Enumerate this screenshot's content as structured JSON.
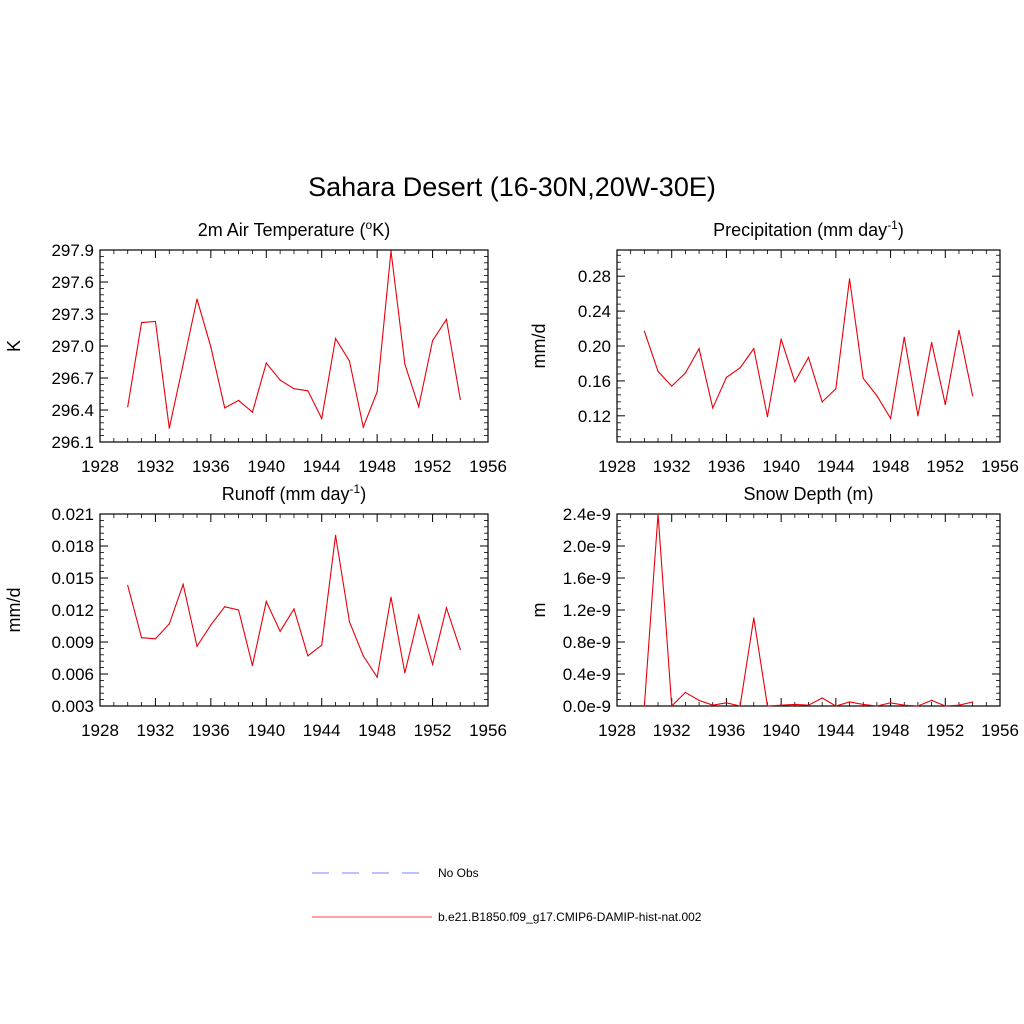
{
  "figure": {
    "title": "Sahara Desert (16-30N,20W-30E)"
  },
  "legend": [
    {
      "label": "No Obs",
      "color": "#9999ff",
      "dash": true
    },
    {
      "label": "b.e21.B1850.f09_g17.CMIP6-DAMIP-hist-nat.002",
      "color": "#ff6666",
      "dash": false
    }
  ],
  "chart_data": [
    {
      "type": "line",
      "title_main": "2m Air Temperature (",
      "title_sup": "o",
      "title_end": "K)",
      "ylabel": "K",
      "xlim": [
        1928,
        1956
      ],
      "ylim": [
        296.1,
        297.9
      ],
      "xticks": [
        1928,
        1932,
        1936,
        1940,
        1944,
        1948,
        1952,
        1956
      ],
      "yticks": [
        296.1,
        296.4,
        296.7,
        297.0,
        297.3,
        297.6,
        297.9
      ],
      "ytick_labels": [
        "296.1",
        "296.4",
        "296.7",
        "297.0",
        "297.3",
        "297.6",
        "297.9"
      ],
      "series": [
        {
          "color": "#e8000b",
          "x": [
            1930,
            1931,
            1932,
            1933,
            1934,
            1935,
            1936,
            1937,
            1938,
            1939,
            1940,
            1941,
            1942,
            1943,
            1944,
            1945,
            1946,
            1947,
            1948,
            1949,
            1950,
            1951,
            1952,
            1953,
            1954
          ],
          "y": [
            296.43,
            297.22,
            297.23,
            296.23,
            296.83,
            297.44,
            296.99,
            296.42,
            296.49,
            296.38,
            296.84,
            296.68,
            296.6,
            296.58,
            296.32,
            297.07,
            296.86,
            296.24,
            296.57,
            297.89,
            296.83,
            296.43,
            297.05,
            297.25,
            296.5
          ]
        }
      ]
    },
    {
      "type": "line",
      "title_main": "Precipitation (mm day",
      "title_sup": "-1",
      "title_end": ")",
      "ylabel": "mm/d",
      "xlim": [
        1928,
        1956
      ],
      "ylim": [
        0.09,
        0.31
      ],
      "xticks": [
        1928,
        1932,
        1936,
        1940,
        1944,
        1948,
        1952,
        1956
      ],
      "yticks": [
        0.12,
        0.16,
        0.2,
        0.24,
        0.28
      ],
      "ytick_labels": [
        "0.12",
        "0.16",
        "0.20",
        "0.24",
        "0.28"
      ],
      "series": [
        {
          "color": "#e8000b",
          "x": [
            1930,
            1931,
            1932,
            1933,
            1934,
            1935,
            1936,
            1937,
            1938,
            1939,
            1940,
            1941,
            1942,
            1943,
            1944,
            1945,
            1946,
            1947,
            1948,
            1949,
            1950,
            1951,
            1952,
            1953,
            1954
          ],
          "y": [
            0.217,
            0.171,
            0.154,
            0.169,
            0.197,
            0.129,
            0.164,
            0.175,
            0.197,
            0.119,
            0.208,
            0.159,
            0.187,
            0.136,
            0.151,
            0.277,
            0.163,
            0.143,
            0.117,
            0.21,
            0.12,
            0.204,
            0.133,
            0.218,
            0.143
          ]
        }
      ]
    },
    {
      "type": "line",
      "title_main": "Runoff (mm day",
      "title_sup": "-1",
      "title_end": ")",
      "ylabel": "mm/d",
      "xlim": [
        1928,
        1956
      ],
      "ylim": [
        0.003,
        0.021
      ],
      "xticks": [
        1928,
        1932,
        1936,
        1940,
        1944,
        1948,
        1952,
        1956
      ],
      "yticks": [
        0.003,
        0.006,
        0.009,
        0.012,
        0.015,
        0.018,
        0.021
      ],
      "ytick_labels": [
        "0.003",
        "0.006",
        "0.009",
        "0.012",
        "0.015",
        "0.018",
        "0.021"
      ],
      "series": [
        {
          "color": "#e8000b",
          "x": [
            1930,
            1931,
            1932,
            1933,
            1934,
            1935,
            1936,
            1937,
            1938,
            1939,
            1940,
            1941,
            1942,
            1943,
            1944,
            1945,
            1946,
            1947,
            1948,
            1949,
            1950,
            1951,
            1952,
            1953,
            1954
          ],
          "y": [
            0.0143,
            0.0094,
            0.0093,
            0.0107,
            0.0144,
            0.0086,
            0.0106,
            0.0123,
            0.012,
            0.0068,
            0.0128,
            0.01,
            0.0121,
            0.0077,
            0.0087,
            0.019,
            0.0109,
            0.0077,
            0.0057,
            0.0132,
            0.0061,
            0.0115,
            0.0069,
            0.0122,
            0.0083
          ]
        }
      ]
    },
    {
      "type": "line",
      "title_main": "Snow Depth (m)",
      "title_sup": "",
      "title_end": "",
      "ylabel": "m",
      "xlim": [
        1928,
        1956
      ],
      "ylim": [
        0,
        2.4e-09
      ],
      "xticks": [
        1928,
        1932,
        1936,
        1940,
        1944,
        1948,
        1952,
        1956
      ],
      "yticks": [
        0,
        4e-10,
        8e-10,
        1.2e-09,
        1.6e-09,
        2e-09,
        2.4e-09
      ],
      "ytick_labels": [
        "0.0e-9",
        "0.4e-9",
        "0.8e-9",
        "1.2e-9",
        "1.6e-9",
        "2.0e-9",
        "2.4e-9"
      ],
      "series": [
        {
          "color": "#e8000b",
          "x": [
            1930,
            1931,
            1932,
            1933,
            1934,
            1935,
            1936,
            1937,
            1938,
            1939,
            1940,
            1941,
            1942,
            1943,
            1944,
            1945,
            1946,
            1947,
            1948,
            1949,
            1950,
            1951,
            1952,
            1953,
            1954
          ],
          "y": [
            0,
            2.4e-09,
            0,
            1.7e-10,
            7e-11,
            1e-11,
            4e-11,
            0,
            1.1e-09,
            0,
            1e-11,
            2e-11,
            1e-11,
            1e-10,
            0,
            5e-11,
            2e-11,
            0,
            4e-11,
            1e-11,
            0,
            7e-11,
            0,
            1e-11,
            5e-11
          ]
        }
      ]
    }
  ]
}
